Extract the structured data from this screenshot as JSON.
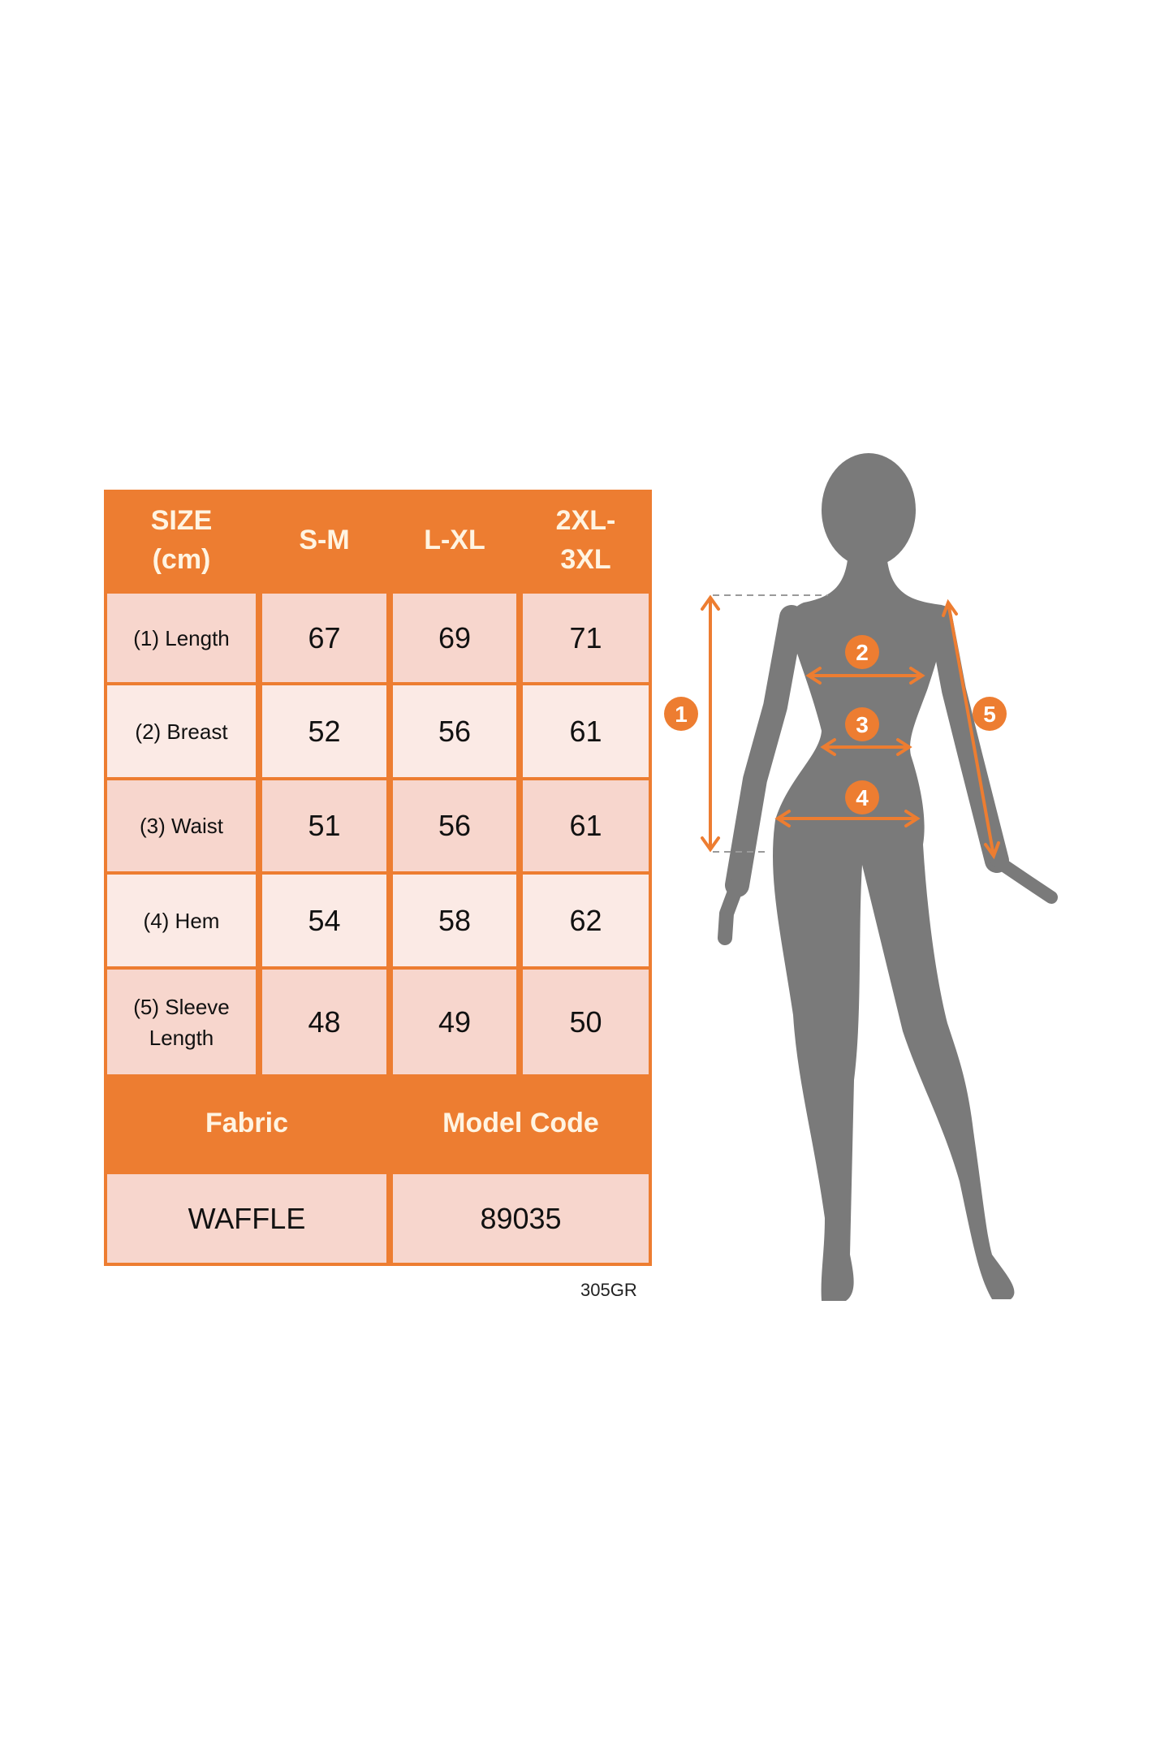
{
  "size_chart": {
    "header": [
      "SIZE (cm)",
      "S-M",
      "L-XL",
      "2XL-3XL"
    ],
    "header_lines": [
      [
        "SIZE",
        "(cm)"
      ],
      [
        "S-M"
      ],
      [
        "L-XL"
      ],
      [
        "2XL-",
        "3XL"
      ]
    ],
    "rows": [
      {
        "label": "(1) Length",
        "values": [
          "67",
          "69",
          "71"
        ]
      },
      {
        "label": "(2) Breast",
        "values": [
          "52",
          "56",
          "61"
        ]
      },
      {
        "label": "(3) Waist",
        "values": [
          "51",
          "56",
          "61"
        ]
      },
      {
        "label": "(4) Hem",
        "values": [
          "54",
          "58",
          "62"
        ]
      },
      {
        "label_lines": [
          "(5) Sleeve",
          "Length"
        ],
        "values": [
          "48",
          "49",
          "50"
        ]
      }
    ],
    "fabric_label": "Fabric",
    "model_code_label": "Model Code",
    "fabric_value": "WAFFLE",
    "model_code_value": "89035"
  },
  "product_code": "305GR",
  "figure": {
    "markers": [
      "1",
      "2",
      "3",
      "4",
      "5"
    ],
    "silhouette_color": "#7A7A7A",
    "accent_color": "#ED7D31"
  }
}
